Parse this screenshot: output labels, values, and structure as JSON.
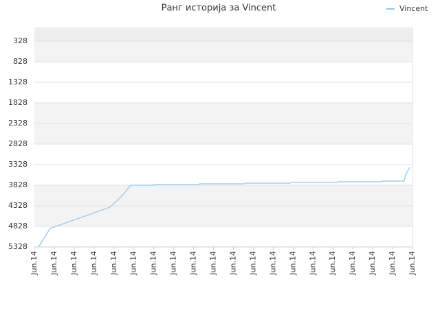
{
  "chart_data": {
    "type": "line",
    "title": "Ранг историја за Vincent",
    "series": [
      {
        "name": "Vincent",
        "color": "#92c5f0",
        "x": [
          0.21,
          0.79,
          3.8,
          4.42,
          4.84,
          5.98,
          6.0,
          8.26,
          8.29,
          10.55,
          10.6,
          12.85,
          12.9,
          15.2,
          15.23,
          17.47,
          17.5,
          18.58,
          18.65,
          18.86
        ],
        "values": [
          5328,
          4878,
          4361,
          4078,
          3828,
          3828,
          3811,
          3811,
          3795,
          3795,
          3778,
          3778,
          3761,
          3761,
          3745,
          3745,
          3728,
          3728,
          3578,
          3395
        ]
      }
    ],
    "xlim": [
      0,
      19
    ],
    "xticks": [
      {
        "value": 0,
        "label": "Jun.14"
      },
      {
        "value": 1,
        "label": "Jun.14"
      },
      {
        "value": 2,
        "label": "Jun.14"
      },
      {
        "value": 3,
        "label": "Jun.14"
      },
      {
        "value": 4,
        "label": "Jun.14"
      },
      {
        "value": 5,
        "label": "Jun.14"
      },
      {
        "value": 6,
        "label": "Jun.14"
      },
      {
        "value": 7,
        "label": "Jun.14"
      },
      {
        "value": 8,
        "label": "Jun.14"
      },
      {
        "value": 9,
        "label": "Jun.14"
      },
      {
        "value": 10,
        "label": "Jun.14"
      },
      {
        "value": 11,
        "label": "Jun.14"
      },
      {
        "value": 12,
        "label": "Jun.14"
      },
      {
        "value": 13,
        "label": "Jun.14"
      },
      {
        "value": 14,
        "label": "Jun.14"
      },
      {
        "value": 15,
        "label": "Jun.14"
      },
      {
        "value": 16,
        "label": "Jun.14"
      },
      {
        "value": 17,
        "label": "Jun.14"
      },
      {
        "value": 18,
        "label": "Jun.14"
      },
      {
        "value": 19,
        "label": "Jun.14"
      }
    ],
    "ylim": [
      5328,
      -5
    ],
    "yticks": [
      328,
      828,
      1328,
      1828,
      2328,
      2828,
      3328,
      3828,
      4328,
      4828,
      5328
    ],
    "grid": true,
    "legend": "top-right"
  }
}
